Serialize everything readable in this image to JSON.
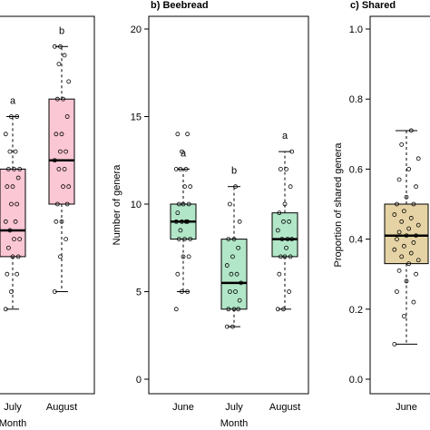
{
  "chart_data": [
    {
      "type": "box",
      "title": "",
      "xlabel": "Month",
      "ylabel": "",
      "categories": [
        "July",
        "August"
      ],
      "fill_color": "#fbc7d4",
      "ylim": [
        0,
        20
      ],
      "letters": [
        "a",
        "b"
      ],
      "boxes": [
        {
          "category": "July",
          "whisker_low": 4,
          "q1": 7,
          "median": 8.5,
          "q3": 12,
          "whisker_high": 15
        },
        {
          "category": "August",
          "whisker_low": 5,
          "q1": 10,
          "median": 12.5,
          "q3": 16,
          "whisker_high": 19
        }
      ],
      "points": [
        [
          4,
          5,
          6,
          6,
          7,
          7,
          7.5,
          8,
          8,
          8.5,
          9,
          9,
          10,
          10,
          11,
          11,
          11.5,
          12,
          12,
          12,
          13,
          13,
          14,
          15,
          15
        ],
        [
          5,
          7,
          8,
          9,
          9,
          10,
          10,
          11,
          11,
          12,
          12,
          12.5,
          13,
          13,
          14,
          14,
          15,
          16,
          16,
          17,
          18,
          18.5,
          19,
          19
        ]
      ]
    },
    {
      "type": "box",
      "title": "b) Beebread",
      "xlabel": "Month",
      "ylabel": "Number of genera",
      "categories": [
        "June",
        "July",
        "August"
      ],
      "fill_color": "#b2e6c8",
      "ylim": [
        0,
        20
      ],
      "yticks": [
        0,
        5,
        10,
        15,
        20
      ],
      "letters": [
        "a",
        "b",
        "a"
      ],
      "boxes": [
        {
          "category": "June",
          "whisker_low": 5,
          "q1": 8,
          "median": 9,
          "q3": 10,
          "whisker_high": 12
        },
        {
          "category": "July",
          "whisker_low": 3,
          "q1": 4,
          "median": 5.5,
          "q3": 8,
          "whisker_high": 11
        },
        {
          "category": "August",
          "whisker_low": 4,
          "q1": 7,
          "median": 8,
          "q3": 9.5,
          "whisker_high": 13
        }
      ],
      "points": [
        [
          4,
          5,
          5,
          6,
          7,
          7,
          8,
          8,
          8,
          8.5,
          9,
          9,
          9,
          9,
          9.5,
          10,
          10,
          10,
          11,
          11,
          12,
          12,
          12,
          13,
          14,
          14
        ],
        [
          3,
          3,
          4,
          4,
          4,
          4.5,
          5,
          5,
          5.5,
          6,
          6,
          6.5,
          7,
          7.5,
          8,
          8,
          9,
          10,
          11
        ],
        [
          4,
          4,
          5,
          6,
          7,
          7,
          7,
          7.5,
          8,
          8,
          8,
          8.5,
          9,
          9,
          9.5,
          10,
          11,
          12,
          12,
          13
        ]
      ]
    },
    {
      "type": "box",
      "title": "c) Shared",
      "xlabel": "",
      "ylabel": "Proportion of shared genera",
      "categories": [
        "June"
      ],
      "fill_color": "#e6d3a5",
      "ylim": [
        0,
        1
      ],
      "yticks": [
        "0.0",
        "0.2",
        "0.4",
        "0.6",
        "0.8",
        "1.0"
      ],
      "letters": [],
      "boxes": [
        {
          "category": "June",
          "whisker_low": 0.1,
          "q1": 0.33,
          "median": 0.41,
          "q3": 0.5,
          "whisker_high": 0.71
        }
      ],
      "points": [
        [
          0.1,
          0.18,
          0.22,
          0.25,
          0.28,
          0.3,
          0.31,
          0.33,
          0.34,
          0.35,
          0.36,
          0.37,
          0.38,
          0.39,
          0.4,
          0.41,
          0.41,
          0.42,
          0.43,
          0.44,
          0.45,
          0.46,
          0.47,
          0.48,
          0.5,
          0.5,
          0.52,
          0.55,
          0.57,
          0.6,
          0.63,
          0.67,
          0.71
        ]
      ]
    }
  ]
}
